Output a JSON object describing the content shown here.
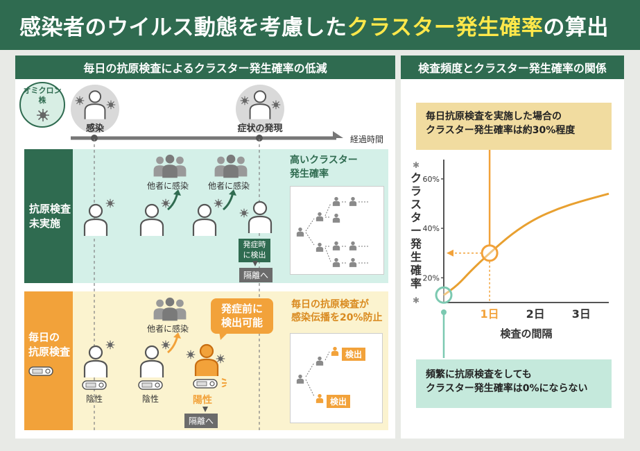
{
  "title": {
    "part1": "感染者のウイルス動態を考慮した",
    "part2": "クラスター発生確率",
    "part3": "の算出"
  },
  "left_panel": {
    "header": "毎日の抗原検査によるクラスター発生確率の低減",
    "virus_badge": "オミクロン\n株",
    "timeline": {
      "infection": "感染",
      "symptom": "症状の発現",
      "elapsed": "経過時間"
    },
    "no_test": {
      "label": "抗原検査\n未実施",
      "infect_others_1": "他者に感染",
      "infect_others_2": "他者に感染",
      "high_prob": "高いクラスター\n発生確率",
      "detect_at_onset": "発症時\nに検出",
      "isolate": "隔離へ"
    },
    "daily_test": {
      "label": "毎日の\n抗原検査",
      "infect_others": "他者に感染",
      "callout": "発症前に\n検出可能",
      "prevent": "毎日の抗原検査が\n感染伝播を20%防止",
      "negative_1": "陰性",
      "negative_2": "陰性",
      "positive": "陽性",
      "isolate": "隔離へ",
      "detected_1": "検出",
      "detected_2": "検出"
    }
  },
  "right_panel": {
    "header": "検査頻度とクラスター発生確率の関係",
    "top_note": "毎日抗原検査を実施した場合の\nクラスター発生確率は約30%程度",
    "bottom_note": "頻繁に抗原検査をしても\nクラスター発生確率は0%にならない"
  },
  "chart_data": {
    "type": "line",
    "ylabel": "クラスター発生確率",
    "xlabel": "検査の間隔",
    "x_ticks": [
      "1日",
      "2日",
      "3日"
    ],
    "y_ticks": [
      "20%",
      "40%",
      "60%"
    ],
    "ylim": [
      10,
      65
    ],
    "highlight_x_tick": "1日",
    "series": [
      {
        "x": [
          0,
          0.3,
          0.6,
          1,
          1.5,
          2,
          2.5,
          3,
          3.6
        ],
        "y": [
          13,
          17,
          23,
          30,
          38,
          44,
          48,
          51,
          54
        ]
      }
    ],
    "markers": [
      {
        "x": 0,
        "y": 13,
        "color": "#7cc9b1"
      },
      {
        "x": 1,
        "y": 30,
        "color": "#f2a23a"
      }
    ],
    "colors": {
      "line": "#e8a030",
      "accent": "#f2a23a",
      "teal": "#7cc9b1"
    }
  }
}
